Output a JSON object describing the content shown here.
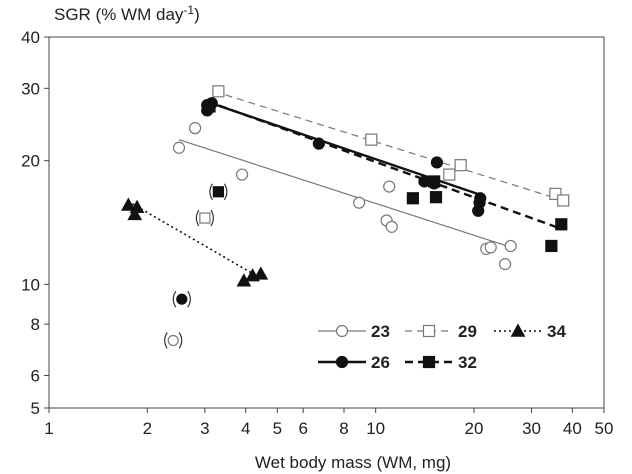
{
  "chart_data": {
    "type": "scatter",
    "ylabel": "SGR (% WM day",
    "ylabel_sup": "-1",
    "ylabel_end": ")",
    "xlabel": "Wet body mass (WM, mg)",
    "x_scale": "log",
    "y_scale": "log",
    "xlim": [
      1,
      50
    ],
    "ylim": [
      5,
      40
    ],
    "x_ticks": [
      1,
      2,
      3,
      4,
      5,
      6,
      8,
      10,
      20,
      30,
      40,
      50
    ],
    "x_tick_labels": [
      "1",
      "2",
      "3",
      "4",
      "5",
      "6",
      "8",
      "10",
      "20",
      "30",
      "40",
      "50"
    ],
    "y_ticks": [
      5,
      6,
      8,
      10,
      20,
      30,
      40
    ],
    "y_tick_labels": [
      "5",
      "6",
      "8",
      "10",
      "20",
      "30",
      "40"
    ],
    "grid": false,
    "legend_position": "bottom-right",
    "series": [
      {
        "name": "23",
        "marker": "circle-open",
        "line": "solid-thin",
        "color": "#777777",
        "points": [
          [
            2.5,
            21.5
          ],
          [
            2.8,
            24
          ],
          [
            3.9,
            18.5
          ],
          [
            8.9,
            15.8
          ],
          [
            11,
            17.3
          ],
          [
            10.8,
            14.3
          ],
          [
            11.2,
            13.8
          ],
          [
            21.8,
            12.2
          ],
          [
            22.5,
            12.3
          ],
          [
            24.9,
            11.2
          ],
          [
            25.9,
            12.4
          ]
        ],
        "bracketed": [
          [
            2.4,
            7.3
          ]
        ],
        "fit": [
          [
            2.5,
            22.5
          ],
          [
            26,
            12.3
          ]
        ]
      },
      {
        "name": "29",
        "marker": "square-open",
        "line": "dashed-thin",
        "color": "#777777",
        "points": [
          [
            3.3,
            29.5
          ],
          [
            9.7,
            22.5
          ],
          [
            16.8,
            18.5
          ],
          [
            18.2,
            19.5
          ],
          [
            35.5,
            16.6
          ],
          [
            37.5,
            16
          ]
        ],
        "bracketed": [
          [
            3,
            14.5
          ]
        ],
        "fit": [
          [
            3.2,
            29.5
          ],
          [
            37.5,
            16
          ]
        ]
      },
      {
        "name": "34",
        "marker": "triangle-filled",
        "line": "dotted",
        "color": "#111111",
        "points": [
          [
            1.75,
            15.6
          ],
          [
            1.86,
            15.4
          ],
          [
            1.83,
            14.8
          ],
          [
            3.95,
            10.2
          ],
          [
            4.2,
            10.5
          ],
          [
            4.45,
            10.6
          ]
        ],
        "bracketed": [],
        "fit": [
          [
            1.8,
            15.7
          ],
          [
            4.4,
            10.4
          ]
        ]
      },
      {
        "name": "26",
        "marker": "circle-filled",
        "line": "solid-thick",
        "color": "#111111",
        "points": [
          [
            3.05,
            26.5
          ],
          [
            3.05,
            27.3
          ],
          [
            3.15,
            27.6
          ],
          [
            6.7,
            22
          ],
          [
            14.1,
            17.8
          ],
          [
            15.1,
            17.6
          ],
          [
            15.4,
            19.8
          ],
          [
            20.6,
            15.1
          ],
          [
            20.8,
            15.8
          ],
          [
            20.9,
            16.2
          ]
        ],
        "bracketed": [
          [
            2.55,
            9.2
          ]
        ],
        "fit": [
          [
            3.05,
            27.8
          ],
          [
            21,
            16.5
          ]
        ]
      },
      {
        "name": "32",
        "marker": "square-filled",
        "line": "dashed-thick",
        "color": "#111111",
        "points": [
          [
            3.1,
            27.1
          ],
          [
            13,
            16.2
          ],
          [
            15.3,
            16.3
          ],
          [
            15.1,
            17.8
          ],
          [
            34.5,
            12.4
          ],
          [
            37,
            14
          ]
        ],
        "bracketed": [
          [
            3.3,
            16.8
          ]
        ],
        "fit": [
          [
            3.05,
            27.9
          ],
          [
            37.5,
            13.6
          ]
        ]
      }
    ],
    "legend": {
      "rows": [
        [
          {
            "name": "23",
            "line": "solid-thin",
            "marker": "circle-open"
          },
          {
            "name": "29",
            "line": "dashed-thin",
            "marker": "square-open"
          },
          {
            "name": "34",
            "line": "dotted",
            "marker": "triangle-filled"
          }
        ],
        [
          {
            "name": "26",
            "line": "solid-thick",
            "marker": "circle-filled"
          },
          {
            "name": "32",
            "line": "dashed-thick",
            "marker": "square-filled"
          }
        ]
      ]
    }
  }
}
